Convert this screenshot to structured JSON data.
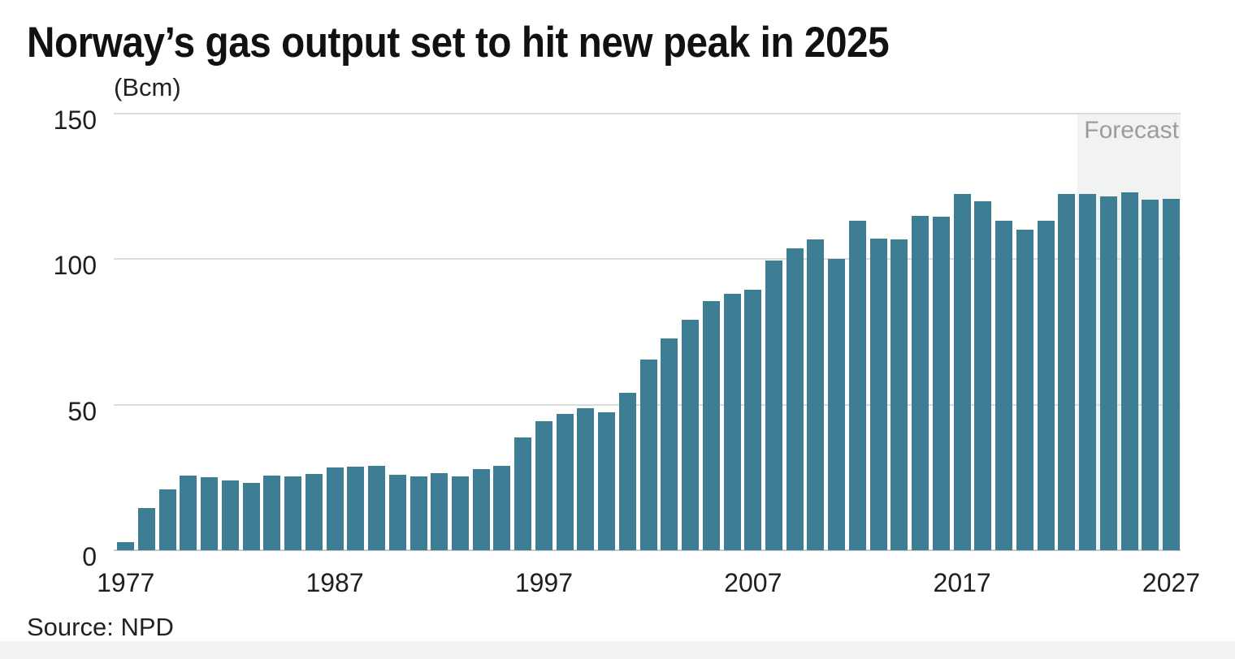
{
  "header": {
    "title": "Norway’s gas output set to hit new peak in 2025",
    "unit_label": "(Bcm)"
  },
  "footer": {
    "source": "Source: NPD"
  },
  "chart_data": {
    "type": "bar",
    "title": "Norway’s gas output set to hit new peak in 2025",
    "ylabel": "(Bcm)",
    "xlabel": "",
    "ylim": [
      0,
      150
    ],
    "yticks": [
      0,
      50,
      100,
      150
    ],
    "xtick_years": [
      1977,
      1987,
      1997,
      2007,
      2017,
      2027
    ],
    "grid": "horizontal",
    "legend": "none",
    "bar_color": "#3e7e95",
    "gridline_color": "#dcdcdc",
    "baseline_color": "#c9c9c9",
    "tick_label_color": "#1f1f1f",
    "forecast_label": "Forecast",
    "forecast_label_color": "#9c9c9c",
    "forecast_band_color": "#f1f2f2",
    "forecast_start_year": 2023,
    "years": [
      1977,
      1978,
      1979,
      1980,
      1981,
      1982,
      1983,
      1984,
      1985,
      1986,
      1987,
      1988,
      1989,
      1990,
      1991,
      1992,
      1993,
      1994,
      1995,
      1996,
      1997,
      1998,
      1999,
      2000,
      2001,
      2002,
      2003,
      2004,
      2005,
      2006,
      2007,
      2008,
      2009,
      2010,
      2011,
      2012,
      2013,
      2014,
      2015,
      2016,
      2017,
      2018,
      2019,
      2020,
      2021,
      2022,
      2023,
      2024,
      2025,
      2026,
      2027
    ],
    "values": [
      2.9,
      14.4,
      21.0,
      25.6,
      25.1,
      24.0,
      23.2,
      25.6,
      25.4,
      26.2,
      28.3,
      28.6,
      29.1,
      25.9,
      25.4,
      26.4,
      25.3,
      27.9,
      28.9,
      38.8,
      44.3,
      46.9,
      48.7,
      47.4,
      54.1,
      65.4,
      72.8,
      79.0,
      85.6,
      88.1,
      89.5,
      99.4,
      103.7,
      106.7,
      100.1,
      113.1,
      106.9,
      106.7,
      114.9,
      114.6,
      122.2,
      119.9,
      113.1,
      110.0,
      113.0,
      122.3,
      122.4,
      121.5,
      122.9,
      120.3,
      120.6
    ]
  }
}
